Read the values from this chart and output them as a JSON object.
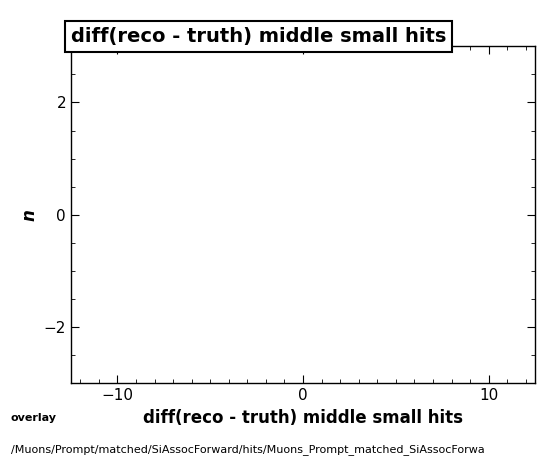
{
  "title": "diff(reco - truth) middle small hits",
  "xlabel": "diff(reco - truth) middle small hits",
  "ylabel": "n",
  "xlim": [
    -12.5,
    12.5
  ],
  "ylim": [
    -3.0,
    3.0
  ],
  "xticks": [
    -10,
    0,
    10
  ],
  "yticks": [
    -2,
    0,
    2
  ],
  "x_minor_interval": 1,
  "y_minor_interval": 0.5,
  "footer_line1": "overlay",
  "footer_line2": "/Muons/Prompt/matched/SiAssocForward/hits/Muons_Prompt_matched_SiAssocForwa",
  "background_color": "#ffffff",
  "title_fontsize": 14,
  "axis_label_fontsize": 12,
  "tick_label_fontsize": 11,
  "footer_fontsize": 8
}
